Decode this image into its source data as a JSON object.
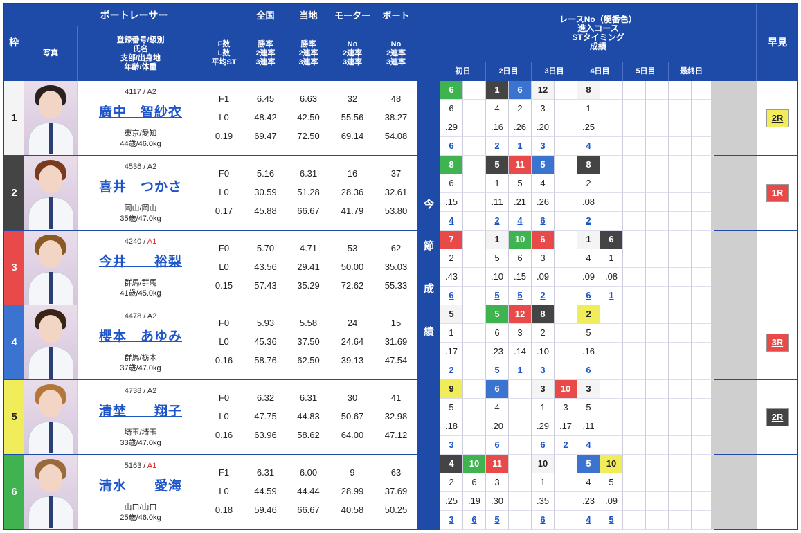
{
  "header": {
    "waku": "枠",
    "photo": "写真",
    "racer": "ボートレーサー",
    "racer_sub": [
      "登録番号/級別",
      "氏名",
      "支部/出身地",
      "年齢/体重"
    ],
    "fl": [
      "F数",
      "L数",
      "平均ST"
    ],
    "zenkoku": "全国",
    "zenkoku_sub": [
      "勝率",
      "2連率",
      "3連率"
    ],
    "touchi": "当地",
    "touchi_sub": [
      "勝率",
      "2連率",
      "3連率"
    ],
    "motor": "モーター",
    "motor_sub": [
      "No",
      "2連率",
      "3連率"
    ],
    "boat": "ボート",
    "boat_sub": [
      "No",
      "2連率",
      "3連率"
    ],
    "race_title": [
      "レースNo（艇番色）",
      "進入コース",
      "STタイミング",
      "成績"
    ],
    "days": [
      "初日",
      "2日目",
      "3日目",
      "4日目",
      "5日目",
      "最終日"
    ],
    "hayami": "早見",
    "konsetsu": [
      "今",
      "節",
      "成",
      "績"
    ]
  },
  "colors": {
    "w1": "#f4f4f4",
    "w2": "#444444",
    "w3": "#e84a4a",
    "w4": "#3a74d0",
    "w5": "#f1ec5a",
    "w6": "#3fb34f"
  },
  "racers": [
    {
      "waku": "1",
      "reg": "4117",
      "cls": "A2",
      "name": "廣中　智紗衣",
      "pref": "東京/愛知",
      "age": "44歳/46.0kg",
      "f": "F1",
      "l": "L0",
      "st": "0.19",
      "zw": "6.45",
      "z2": "48.42",
      "z3": "69.47",
      "tw": "6.63",
      "t2": "42.50",
      "t3": "72.50",
      "mno": "32",
      "m2": "55.56",
      "m3": "69.14",
      "bno": "48",
      "b2": "38.27",
      "b3": "54.08",
      "hayami": "2R",
      "hcolor": "5",
      "hair": "#2a2020"
    },
    {
      "waku": "2",
      "reg": "4536",
      "cls": "A2",
      "name": "喜井　つかさ",
      "pref": "岡山/岡山",
      "age": "35歳/47.0kg",
      "f": "F0",
      "l": "L0",
      "st": "0.17",
      "zw": "5.16",
      "z2": "30.59",
      "z3": "45.88",
      "tw": "6.31",
      "t2": "51.28",
      "t3": "66.67",
      "mno": "16",
      "m2": "28.36",
      "m3": "41.79",
      "bno": "37",
      "b2": "32.61",
      "b3": "53.80",
      "hayami": "1R",
      "hcolor": "3",
      "hair": "#7a3b1d"
    },
    {
      "waku": "3",
      "reg": "4240",
      "cls": "A1",
      "name": "今井　　裕梨",
      "pref": "群馬/群馬",
      "age": "41歳/45.0kg",
      "f": "F0",
      "l": "L0",
      "st": "0.15",
      "zw": "5.70",
      "z2": "43.56",
      "z3": "57.43",
      "tw": "4.71",
      "t2": "29.41",
      "t3": "35.29",
      "mno": "53",
      "m2": "50.00",
      "m3": "72.62",
      "bno": "62",
      "b2": "35.03",
      "b3": "55.33",
      "hayami": "",
      "hcolor": "",
      "hair": "#8a5a22"
    },
    {
      "waku": "4",
      "reg": "4478",
      "cls": "A2",
      "name": "櫻本　あゆみ",
      "pref": "群馬/栃木",
      "age": "37歳/47.0kg",
      "f": "F0",
      "l": "L0",
      "st": "0.16",
      "zw": "5.93",
      "z2": "45.36",
      "z3": "58.76",
      "tw": "5.58",
      "t2": "37.50",
      "t3": "62.50",
      "mno": "24",
      "m2": "24.64",
      "m3": "39.13",
      "bno": "15",
      "b2": "31.69",
      "b3": "47.54",
      "hayami": "3R",
      "hcolor": "3",
      "hair": "#3a2418"
    },
    {
      "waku": "5",
      "reg": "4738",
      "cls": "A2",
      "name": "清埜　　翔子",
      "pref": "埼玉/埼玉",
      "age": "33歳/47.0kg",
      "f": "F0",
      "l": "L0",
      "st": "0.16",
      "zw": "6.32",
      "z2": "47.75",
      "z3": "63.96",
      "tw": "6.31",
      "t2": "44.83",
      "t3": "58.62",
      "mno": "30",
      "m2": "50.67",
      "m3": "64.00",
      "bno": "41",
      "b2": "32.98",
      "b3": "47.12",
      "hayami": "2R",
      "hcolor": "2",
      "hair": "#b5763a"
    },
    {
      "waku": "6",
      "reg": "5163",
      "cls": "A1",
      "name": "清水　　愛海",
      "pref": "山口/山口",
      "age": "25歳/46.0kg",
      "f": "F1",
      "l": "L0",
      "st": "0.18",
      "zw": "6.31",
      "z2": "44.59",
      "z3": "59.46",
      "tw": "6.00",
      "t2": "44.44",
      "t3": "66.67",
      "mno": "9",
      "m2": "28.99",
      "m3": "40.58",
      "bno": "63",
      "b2": "37.69",
      "b3": "50.25",
      "hayami": "",
      "hcolor": "",
      "hair": "#9a6a3a"
    }
  ],
  "results": [
    [
      [
        "6",
        "6",
        "6",
        ".29",
        "6"
      ],
      null,
      [
        "1",
        "2",
        "4",
        ".16",
        "2"
      ],
      [
        "6",
        "4",
        "2",
        ".26",
        "1"
      ],
      [
        "12",
        "1",
        "3",
        ".20",
        "3"
      ],
      null,
      [
        "8",
        "1",
        "1",
        ".25",
        "4"
      ],
      null,
      null,
      null,
      null,
      null
    ],
    [
      [
        "8",
        "6",
        "6",
        ".15",
        "4"
      ],
      null,
      [
        "5",
        "2",
        "1",
        ".11",
        "2"
      ],
      [
        "11",
        "3",
        "5",
        ".21",
        "4"
      ],
      [
        "5",
        "4",
        "4",
        ".26",
        "6"
      ],
      null,
      [
        "8",
        "2",
        "2",
        ".08",
        "2"
      ],
      null,
      null,
      null,
      null,
      null
    ],
    [
      [
        "7",
        "3",
        "2",
        ".43",
        "6"
      ],
      null,
      [
        "1",
        "1",
        "5",
        ".10",
        "5"
      ],
      [
        "10",
        "6",
        "6",
        ".15",
        "5"
      ],
      [
        "6",
        "3",
        "3",
        ".09",
        "2"
      ],
      null,
      [
        "1",
        "1",
        "4",
        ".09",
        "6"
      ],
      [
        "6",
        "2",
        "1",
        ".08",
        "1"
      ],
      null,
      null,
      null,
      null
    ],
    [
      [
        "5",
        "1",
        "1",
        ".17",
        "2"
      ],
      null,
      [
        "5",
        "6",
        "6",
        ".23",
        "5"
      ],
      [
        "12",
        "3",
        "3",
        ".14",
        "1"
      ],
      [
        "8",
        "2",
        "2",
        ".10",
        "3"
      ],
      null,
      [
        "2",
        "5",
        "5",
        ".16",
        "6"
      ],
      null,
      null,
      null,
      null,
      null
    ],
    [
      [
        "9",
        "5",
        "5",
        ".18",
        "3"
      ],
      null,
      [
        "6",
        "4",
        "4",
        ".20",
        "6"
      ],
      null,
      [
        "3",
        "1",
        "1",
        ".29",
        "6"
      ],
      [
        "10",
        "3",
        "3",
        ".17",
        "2"
      ],
      [
        "3",
        "1",
        "5",
        ".11",
        "4"
      ],
      null,
      null,
      null,
      null,
      null
    ],
    [
      [
        "4",
        "2",
        "2",
        ".25",
        "3"
      ],
      [
        "10",
        "6",
        "6",
        ".19",
        "6"
      ],
      [
        "11",
        "3",
        "3",
        ".30",
        "5"
      ],
      null,
      [
        "10",
        "1",
        "1",
        ".35",
        "6"
      ],
      null,
      [
        "5",
        "4",
        "4",
        ".23",
        "4"
      ],
      [
        "10",
        "5",
        "5",
        ".09",
        "5"
      ],
      null,
      null,
      null,
      null
    ]
  ]
}
